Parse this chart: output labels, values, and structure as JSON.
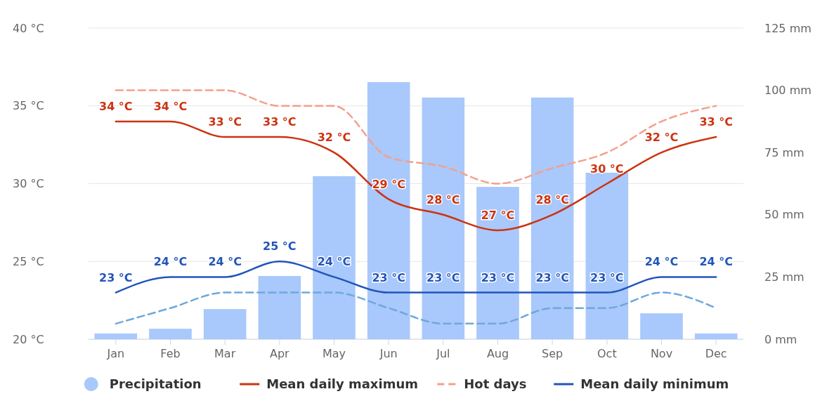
{
  "chart_data": {
    "type": "bar",
    "categories": [
      "Jan",
      "Feb",
      "Mar",
      "Apr",
      "May",
      "Jun",
      "Jul",
      "Aug",
      "Sep",
      "Oct",
      "Nov",
      "Dec"
    ],
    "ylim": [
      20,
      40
    ],
    "yticks": [
      {
        "value": 20,
        "label": "20 °C"
      },
      {
        "value": 25,
        "label": "25 °C"
      },
      {
        "value": 30,
        "label": "30 °C"
      },
      {
        "value": 35,
        "label": "35 °C"
      },
      {
        "value": 40,
        "label": "40 °C"
      }
    ],
    "y2lim": [
      0,
      125
    ],
    "y2ticks": [
      {
        "value": 0,
        "label": "0 mm"
      },
      {
        "value": 25,
        "label": "25 mm"
      },
      {
        "value": 50,
        "label": "50 mm"
      },
      {
        "value": 75,
        "label": "75 mm"
      },
      {
        "value": 100,
        "label": "100 mm"
      },
      {
        "value": 125,
        "label": "125 mm"
      }
    ],
    "grid": "y",
    "legend": "bottom",
    "series": [
      {
        "name": "Precipitation",
        "axis": "y2",
        "color": "#a9c8fb",
        "values": [
          2.3,
          4.2,
          12.1,
          25.4,
          65.5,
          103.3,
          97.1,
          61.2,
          97.1,
          66.9,
          10.4,
          2.3
        ]
      },
      {
        "type": "line",
        "line_style": "dashed",
        "color": "#6fa8dc",
        "values": [
          21,
          22,
          23,
          23,
          23,
          22,
          21,
          21,
          22,
          22,
          23,
          22
        ]
      },
      {
        "name": "Mean daily maximum",
        "type": "line",
        "line_style": "solid",
        "color": "#cc3311",
        "values": [
          34,
          34,
          33,
          33,
          32,
          29,
          28,
          27,
          28,
          30,
          32,
          33
        ],
        "value_labels": [
          "34 °C",
          "34 °C",
          "33 °C",
          "33 °C",
          "32 °C",
          "29 °C",
          "28 °C",
          "27 °C",
          "28 °C",
          "30 °C",
          "32 °C",
          "33 °C"
        ]
      },
      {
        "name": "Hot days",
        "type": "line",
        "line_style": "dashed",
        "color": "#f4a08c",
        "values": [
          36,
          36,
          36,
          35,
          35,
          31.7,
          31.1,
          30,
          31,
          32,
          34,
          35
        ]
      },
      {
        "name": "Mean daily minimum",
        "type": "line",
        "line_style": "solid",
        "color": "#2255bb",
        "values": [
          23,
          24,
          24,
          25,
          24,
          23,
          23,
          23,
          23,
          23,
          24,
          24
        ],
        "value_labels": [
          "23 °C",
          "24 °C",
          "24 °C",
          "25 °C",
          "24 °C",
          "23 °C",
          "23 °C",
          "23 °C",
          "23 °C",
          "23 °C",
          "24 °C",
          "24 °C"
        ]
      }
    ]
  }
}
